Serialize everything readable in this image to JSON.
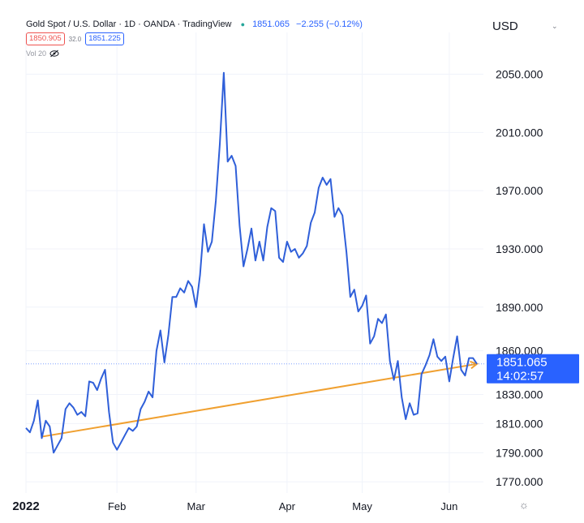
{
  "header": {
    "symbol": "Gold Spot / U.S. Dollar · 1D · OANDA · TradingView",
    "last_price": "1851.065",
    "change": "−2.255 (−0.12%)",
    "sell": "1850.905",
    "spread": "32.0",
    "buy": "1851.225",
    "vol_label": "Vol 20"
  },
  "currency": "USD",
  "current_price_label": "1851.065",
  "countdown": "14:02:57",
  "colors": {
    "line": "#2f5fd9",
    "trend": "#f0a030",
    "price_tag": "#2962ff",
    "sell": "#ef5350",
    "buy": "#2962ff"
  },
  "icons": [
    "eye-slash-icon",
    "settings-icon",
    "caret-down-icon"
  ],
  "chart_data": {
    "type": "line",
    "title": "Gold Spot / U.S. Dollar",
    "ylabel": "USD",
    "ylim": [
      1764,
      2062
    ],
    "y_ticks": [
      "2050.000",
      "2010.000",
      "1970.000",
      "1930.000",
      "1890.000",
      "1860.000",
      "1830.000",
      "1810.000",
      "1790.000",
      "1770.000"
    ],
    "x_ticks": [
      {
        "label": "2022",
        "bold": true,
        "index": 0
      },
      {
        "label": "Feb",
        "index": 23
      },
      {
        "label": "Mar",
        "index": 43
      },
      {
        "label": "Apr",
        "index": 66
      },
      {
        "label": "May",
        "index": 85
      },
      {
        "label": "Jun",
        "index": 107
      }
    ],
    "series": [
      {
        "values": [
          1807,
          1804,
          1812,
          1826,
          1800,
          1812,
          1808,
          1790,
          1795,
          1800,
          1820,
          1824,
          1821,
          1816,
          1818,
          1815,
          1839,
          1838,
          1833,
          1841,
          1847,
          1818,
          1797,
          1792,
          1797,
          1802,
          1807,
          1805,
          1808,
          1820,
          1825,
          1832,
          1828,
          1860,
          1874,
          1852,
          1871,
          1897,
          1897,
          1903,
          1900,
          1908,
          1904,
          1890,
          1912,
          1947,
          1928,
          1935,
          1963,
          2002,
          2051,
          1990,
          1994,
          1987,
          1946,
          1918,
          1930,
          1944,
          1922,
          1935,
          1922,
          1945,
          1958,
          1956,
          1924,
          1921,
          1935,
          1928,
          1930,
          1924,
          1927,
          1932,
          1948,
          1955,
          1972,
          1979,
          1974,
          1978,
          1952,
          1958,
          1953,
          1928,
          1897,
          1902,
          1887,
          1891,
          1898,
          1865,
          1870,
          1882,
          1879,
          1885,
          1853,
          1840,
          1853,
          1828,
          1813,
          1824,
          1816,
          1817,
          1844,
          1850,
          1857,
          1868,
          1856,
          1853,
          1856,
          1839,
          1855,
          1870,
          1847,
          1843,
          1855,
          1855,
          1851
        ]
      }
    ],
    "trendline": {
      "from": {
        "index": 4,
        "value": 1801
      },
      "to": {
        "index": 114,
        "value": 1851
      }
    },
    "current_price": 1851.065,
    "grid": true
  }
}
